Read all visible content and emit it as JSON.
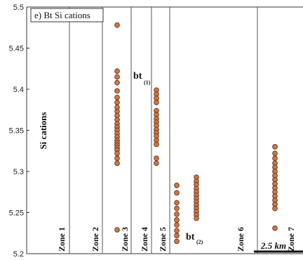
{
  "chart_data": {
    "type": "scatter",
    "title": "e) Bt Si cations",
    "ylabel": "Si cations",
    "ylim": [
      5.2,
      5.5
    ],
    "yticks": [
      5.2,
      5.25,
      5.3,
      5.35,
      5.4,
      5.45,
      5.5
    ],
    "ytick_labels": [
      "5.2",
      "5.25",
      "5.3",
      "5.35",
      "5.4",
      "5.45",
      "5.5"
    ],
    "grid": false,
    "colors": {
      "marker_fill": "#c8784a",
      "marker_edge": "#6b3518",
      "zone_line": "#555555"
    },
    "zones": [
      {
        "label": "Zone 1"
      },
      {
        "label": "Zone 2"
      },
      {
        "label": "Zone 3"
      },
      {
        "label": "Zone 4"
      },
      {
        "label": "Zone 5"
      },
      {
        "label": "Zone 6"
      },
      {
        "label": "Zone 7"
      }
    ],
    "annotations": [
      {
        "main": "bt",
        "sub": "(1)"
      },
      {
        "main": "bt",
        "sub": "(2)"
      }
    ],
    "scale_bar_label": "2.5 km",
    "series": [
      {
        "zone": "Zone 3",
        "y": [
          5.478,
          5.422,
          5.415,
          5.408,
          5.398,
          5.39,
          5.384,
          5.378,
          5.373,
          5.368,
          5.363,
          5.358,
          5.354,
          5.35,
          5.346,
          5.342,
          5.338,
          5.335,
          5.332,
          5.329,
          5.326,
          5.322,
          5.316,
          5.31,
          5.229
        ]
      },
      {
        "zone": "Zone 5",
        "y": [
          5.399,
          5.394,
          5.389,
          5.384,
          5.374,
          5.369,
          5.364,
          5.36,
          5.356,
          5.351,
          5.347,
          5.343,
          5.338,
          5.333,
          5.316,
          5.31
        ]
      },
      {
        "zone": "Zone 6a",
        "y": [
          5.283,
          5.274,
          5.262,
          5.255,
          5.248,
          5.241,
          5.235,
          5.228,
          5.222,
          5.215
        ]
      },
      {
        "zone": "Zone 6b",
        "y": [
          5.293,
          5.288,
          5.284,
          5.279,
          5.275,
          5.271,
          5.267,
          5.263,
          5.259,
          5.255,
          5.251,
          5.247,
          5.243
        ]
      },
      {
        "zone": "Zone 7",
        "y": [
          5.33,
          5.322,
          5.316,
          5.31,
          5.305,
          5.3,
          5.295,
          5.29,
          5.285,
          5.28,
          5.275,
          5.27,
          5.265,
          5.26,
          5.255,
          5.231
        ]
      }
    ]
  }
}
